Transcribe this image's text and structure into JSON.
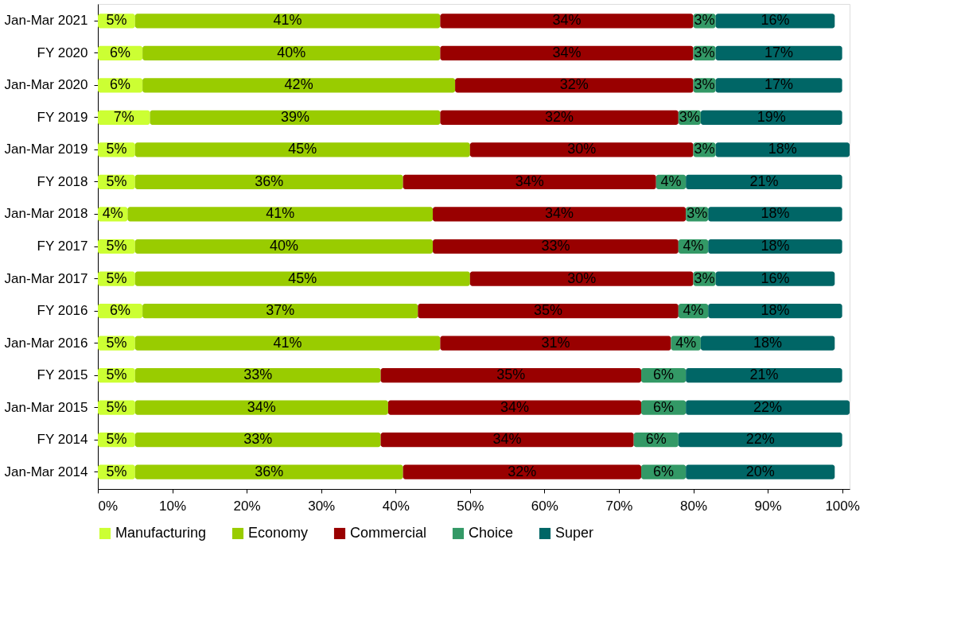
{
  "chart_data": {
    "type": "bar",
    "orientation": "horizontal",
    "stacked": true,
    "categories": [
      "Jan-Mar 2021",
      "FY 2020",
      "Jan-Mar 2020",
      "FY 2019",
      "Jan-Mar 2019",
      "FY 2018",
      "Jan-Mar 2018",
      "FY 2017",
      "Jan-Mar 2017",
      "FY 2016",
      "Jan-Mar 2016",
      "FY 2015",
      "Jan-Mar 2015",
      "FY 2014",
      "Jan-Mar 2014"
    ],
    "series": [
      {
        "name": "Manufacturing",
        "color": "#ccff33",
        "values": [
          5,
          6,
          6,
          7,
          5,
          5,
          4,
          5,
          5,
          6,
          5,
          5,
          5,
          5,
          5
        ],
        "value_labels": [
          "5%",
          "6%",
          "6%",
          "7%",
          "5%",
          "5%",
          "4%",
          "5%",
          "5%",
          "6%",
          "5%",
          "5%",
          "5%",
          "5%",
          "5%"
        ]
      },
      {
        "name": "Economy",
        "color": "#99cc00",
        "values": [
          41,
          40,
          42,
          39,
          45,
          36,
          41,
          40,
          45,
          37,
          41,
          33,
          34,
          33,
          36
        ],
        "value_labels": [
          "41%",
          "40%",
          "42%",
          "39%",
          "45%",
          "36%",
          "41%",
          "40%",
          "45%",
          "37%",
          "41%",
          "33%",
          "34%",
          "33%",
          "36%"
        ]
      },
      {
        "name": "Commercial",
        "color": "#990000",
        "values": [
          34,
          34,
          32,
          32,
          30,
          34,
          34,
          33,
          30,
          35,
          31,
          35,
          34,
          34,
          32
        ],
        "value_labels": [
          "34%",
          "34%",
          "32%",
          "32%",
          "30%",
          "34%",
          "34%",
          "33%",
          "30%",
          "35%",
          "31%",
          "35%",
          "34%",
          "34%",
          "32%"
        ]
      },
      {
        "name": "Choice",
        "color": "#339966",
        "values": [
          3,
          3,
          3,
          3,
          3,
          4,
          3,
          4,
          3,
          4,
          4,
          6,
          6,
          6,
          6
        ],
        "value_labels": [
          "3%",
          "3%",
          "3%",
          "3%",
          "3%",
          "4%",
          "3%",
          "4%",
          "3%",
          "4%",
          "4%",
          "6%",
          "6%",
          "6%",
          "6%"
        ]
      },
      {
        "name": "Super",
        "color": "#006666",
        "values": [
          16,
          17,
          17,
          19,
          18,
          21,
          18,
          18,
          16,
          18,
          18,
          21,
          22,
          22,
          20
        ],
        "value_labels": [
          "16%",
          "17%",
          "17%",
          "19%",
          "18%",
          "21%",
          "18%",
          "18%",
          "16%",
          "18%",
          "18%",
          "21%",
          "22%",
          "22%",
          "20%"
        ]
      }
    ],
    "xlim": [
      0,
      101
    ],
    "xticks": [
      {
        "value": 0,
        "label": "0%"
      },
      {
        "value": 10,
        "label": "10%"
      },
      {
        "value": 20,
        "label": "20%"
      },
      {
        "value": 30,
        "label": "30%"
      },
      {
        "value": 40,
        "label": "40%"
      },
      {
        "value": 50,
        "label": "50%"
      },
      {
        "value": 60,
        "label": "60%"
      },
      {
        "value": 70,
        "label": "70%"
      },
      {
        "value": 80,
        "label": "80%"
      },
      {
        "value": 90,
        "label": "90%"
      },
      {
        "value": 100,
        "label": "100%"
      }
    ],
    "grid": false,
    "legend": "bottom"
  }
}
